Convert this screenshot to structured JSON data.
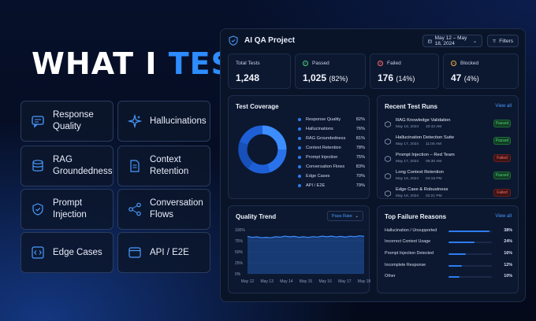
{
  "headline": {
    "white": "WHAT I ",
    "blue": "TEST"
  },
  "categories": [
    {
      "label": "Response Quality",
      "icon": "chat-icon"
    },
    {
      "label": "Hallucinations",
      "icon": "sparkle-icon"
    },
    {
      "label": "RAG Groundedness",
      "icon": "database-icon"
    },
    {
      "label": "Context Retention",
      "icon": "document-icon"
    },
    {
      "label": "Prompt Injection",
      "icon": "shield-icon"
    },
    {
      "label": "Conversation Flows",
      "icon": "flow-icon"
    },
    {
      "label": "Edge Cases",
      "icon": "code-icon"
    },
    {
      "label": "API / E2E",
      "icon": "window-icon"
    }
  ],
  "dashboard": {
    "project": "AI QA Project",
    "date_range": "May 12 – May 18, 2024",
    "filters": "Filters",
    "stats": [
      {
        "label": "Total Tests",
        "value": "1,248",
        "pct": ""
      },
      {
        "label": "Passed",
        "value": "1,025",
        "pct": "(82%)"
      },
      {
        "label": "Failed",
        "value": "176",
        "pct": "(14%)"
      },
      {
        "label": "Blocked",
        "value": "47",
        "pct": "(4%)"
      }
    ],
    "coverage": {
      "title": "Test Coverage",
      "items": [
        {
          "label": "Response Quality",
          "pct": "82%"
        },
        {
          "label": "Hallucinations",
          "pct": "76%"
        },
        {
          "label": "RAG Groundedness",
          "pct": "81%"
        },
        {
          "label": "Context Retention",
          "pct": "78%"
        },
        {
          "label": "Prompt Injection",
          "pct": "75%"
        },
        {
          "label": "Conversation Flows",
          "pct": "83%"
        },
        {
          "label": "Edge Cases",
          "pct": "70%"
        },
        {
          "label": "API / E2E",
          "pct": "79%"
        }
      ]
    },
    "runs": {
      "title": "Recent Test Runs",
      "view_all": "View all",
      "items": [
        {
          "name": "RAG Knowledge Validation",
          "date": "May 18, 2024",
          "time": "10:42 AM",
          "status": "Passed"
        },
        {
          "name": "Hallucination Detection Suite",
          "date": "May 17, 2024",
          "time": "11:05 AM",
          "status": "Passed"
        },
        {
          "name": "Prompt Injection – Red Team",
          "date": "May 17, 2024",
          "time": "09:30 AM",
          "status": "Failed"
        },
        {
          "name": "Long Context Retention",
          "date": "May 16, 2024",
          "time": "04:18 PM",
          "status": "Passed"
        },
        {
          "name": "Edge Case & Robustness",
          "date": "May 16, 2024",
          "time": "02:21 PM",
          "status": "Failed"
        }
      ]
    },
    "trend": {
      "title": "Quality Trend",
      "metric": "Pass Rate"
    },
    "failures": {
      "title": "Top Failure Reasons",
      "view_all": "View all",
      "items": [
        {
          "label": "Hallucination / Unsupported",
          "pct": "38%",
          "value": 38
        },
        {
          "label": "Incorrect Context Usage",
          "pct": "24%",
          "value": 24
        },
        {
          "label": "Prompt Injection Detected",
          "pct": "16%",
          "value": 16
        },
        {
          "label": "Incomplete Response",
          "pct": "12%",
          "value": 12
        },
        {
          "label": "Other",
          "pct": "10%",
          "value": 10
        }
      ]
    }
  },
  "chart_data": {
    "type": "area",
    "x": [
      "May 12",
      "May 13",
      "May 14",
      "May 15",
      "May 16",
      "May 17",
      "May 18"
    ],
    "series": [
      {
        "values": [
          84,
          82,
          85,
          83,
          85,
          84,
          86
        ]
      }
    ],
    "yticks": [
      "100%",
      "75%",
      "50%",
      "25%",
      "0%"
    ],
    "ylim": [
      0,
      100
    ],
    "grid": true
  },
  "colors": {
    "accent": "#2d8cff",
    "pass": "#4bd07b",
    "fail": "#ff6b6b",
    "blocked": "#f5b13d"
  }
}
